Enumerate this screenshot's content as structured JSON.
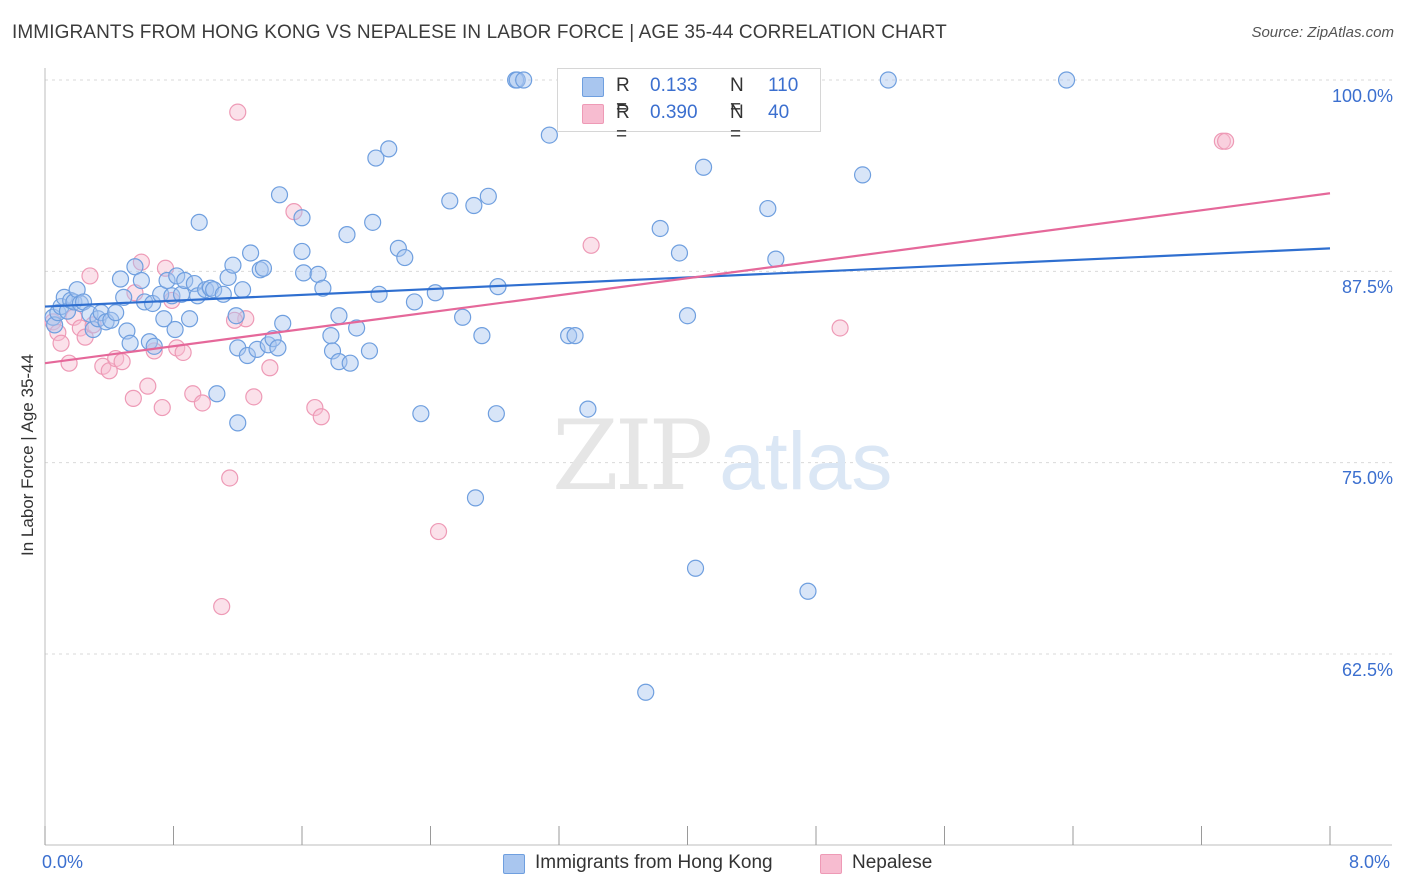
{
  "header": {
    "title": "IMMIGRANTS FROM HONG KONG VS NEPALESE IN LABOR FORCE | AGE 35-44 CORRELATION CHART",
    "source": "Source: ZipAtlas.com"
  },
  "watermark": {
    "zip": "ZIP",
    "atlas": "atlas"
  },
  "legend": {
    "series1": {
      "r_label": "R =",
      "r_value": "0.133",
      "n_label": "N =",
      "n_value": "110"
    },
    "series2": {
      "r_label": "R =",
      "r_value": "0.390",
      "n_label": "N =",
      "n_value": "40"
    }
  },
  "colors": {
    "blue_fill": "#a9c6ef",
    "blue_stroke": "#6f9fdf",
    "blue_line": "#2f6fd0",
    "pink_fill": "#f7bcd0",
    "pink_stroke": "#ee9ab6",
    "pink_line": "#e5689a",
    "grid": "#d9d9d9",
    "tick_text": "#3b6fcf"
  },
  "chart_data": {
    "type": "scatter",
    "title": "IMMIGRANTS FROM HONG KONG VS NEPALESE IN LABOR FORCE | AGE 35-44 CORRELATION CHART",
    "xlabel": "",
    "ylabel": "In Labor Force | Age 35-44",
    "xlim": [
      0,
      8
    ],
    "ylim": [
      50,
      100.5
    ],
    "x_tick_labels": [
      "0.0%",
      "8.0%"
    ],
    "y_ticks": [
      62.5,
      75.0,
      87.5,
      100.0
    ],
    "y_tick_labels": [
      "62.5%",
      "75.0%",
      "87.5%",
      "100.0%"
    ],
    "grid": true,
    "legend_position": "top-center",
    "series": [
      {
        "name": "Immigrants from Hong Kong",
        "color": "#a9c6ef",
        "trend": {
          "x": [
            0,
            8
          ],
          "y": [
            85.2,
            89.0
          ]
        },
        "points": [
          [
            0.05,
            84.5
          ],
          [
            0.06,
            84.0
          ],
          [
            0.08,
            84.8
          ],
          [
            0.1,
            85.2
          ],
          [
            0.12,
            85.8
          ],
          [
            0.14,
            84.9
          ],
          [
            0.16,
            85.6
          ],
          [
            0.18,
            85.5
          ],
          [
            0.2,
            86.3
          ],
          [
            0.22,
            85.4
          ],
          [
            0.24,
            85.5
          ],
          [
            0.28,
            84.7
          ],
          [
            0.3,
            83.7
          ],
          [
            0.33,
            84.4
          ],
          [
            0.35,
            84.8
          ],
          [
            0.38,
            84.2
          ],
          [
            0.41,
            84.3
          ],
          [
            0.44,
            84.8
          ],
          [
            0.47,
            87.0
          ],
          [
            0.49,
            85.8
          ],
          [
            0.51,
            83.6
          ],
          [
            0.53,
            82.8
          ],
          [
            0.56,
            87.8
          ],
          [
            0.6,
            86.9
          ],
          [
            0.62,
            85.5
          ],
          [
            0.65,
            82.9
          ],
          [
            0.67,
            85.4
          ],
          [
            0.68,
            82.6
          ],
          [
            0.72,
            86.0
          ],
          [
            0.74,
            84.4
          ],
          [
            0.76,
            86.9
          ],
          [
            0.79,
            85.9
          ],
          [
            0.81,
            83.7
          ],
          [
            0.82,
            87.2
          ],
          [
            0.85,
            86.0
          ],
          [
            0.87,
            86.9
          ],
          [
            0.9,
            84.4
          ],
          [
            0.93,
            86.7
          ],
          [
            0.95,
            85.9
          ],
          [
            0.96,
            90.7
          ],
          [
            1.0,
            86.3
          ],
          [
            1.03,
            86.4
          ],
          [
            1.05,
            86.3
          ],
          [
            1.07,
            79.5
          ],
          [
            1.11,
            86.0
          ],
          [
            1.14,
            87.1
          ],
          [
            1.17,
            87.9
          ],
          [
            1.19,
            84.6
          ],
          [
            1.2,
            77.6
          ],
          [
            1.2,
            82.5
          ],
          [
            1.23,
            86.3
          ],
          [
            1.26,
            82.0
          ],
          [
            1.28,
            88.7
          ],
          [
            1.32,
            82.4
          ],
          [
            1.34,
            87.6
          ],
          [
            1.36,
            87.7
          ],
          [
            1.39,
            82.7
          ],
          [
            1.42,
            83.1
          ],
          [
            1.45,
            82.5
          ],
          [
            1.46,
            92.5
          ],
          [
            1.48,
            84.1
          ],
          [
            1.6,
            91.0
          ],
          [
            1.6,
            88.8
          ],
          [
            1.61,
            87.4
          ],
          [
            1.7,
            87.3
          ],
          [
            1.73,
            86.4
          ],
          [
            1.78,
            83.3
          ],
          [
            1.79,
            82.3
          ],
          [
            1.83,
            84.6
          ],
          [
            1.83,
            81.6
          ],
          [
            1.88,
            89.9
          ],
          [
            1.9,
            81.5
          ],
          [
            1.94,
            83.8
          ],
          [
            2.02,
            82.3
          ],
          [
            2.04,
            90.7
          ],
          [
            2.06,
            94.9
          ],
          [
            2.08,
            86.0
          ],
          [
            2.14,
            95.5
          ],
          [
            2.2,
            89.0
          ],
          [
            2.24,
            88.4
          ],
          [
            2.3,
            85.5
          ],
          [
            2.34,
            78.2
          ],
          [
            2.43,
            86.1
          ],
          [
            2.52,
            92.1
          ],
          [
            2.6,
            84.5
          ],
          [
            2.68,
            72.7
          ],
          [
            2.72,
            83.3
          ],
          [
            2.76,
            92.4
          ],
          [
            2.81,
            78.2
          ],
          [
            2.82,
            86.5
          ],
          [
            2.93,
            100.0
          ],
          [
            2.94,
            100.0
          ],
          [
            3.14,
            96.4
          ],
          [
            3.26,
            83.3
          ],
          [
            3.3,
            83.3
          ],
          [
            3.38,
            78.5
          ],
          [
            3.83,
            90.3
          ],
          [
            3.95,
            88.7
          ],
          [
            4.0,
            84.6
          ],
          [
            4.05,
            68.1
          ],
          [
            4.1,
            94.3
          ],
          [
            4.5,
            91.6
          ],
          [
            4.55,
            88.3
          ],
          [
            4.75,
            66.6
          ],
          [
            5.09,
            93.8
          ],
          [
            5.25,
            100.0
          ],
          [
            6.36,
            100.0
          ],
          [
            3.74,
            60.0
          ],
          [
            2.98,
            100.0
          ],
          [
            2.67,
            91.8
          ]
        ]
      },
      {
        "name": "Nepalese",
        "color": "#f7bcd0",
        "trend": {
          "x": [
            0,
            8
          ],
          "y": [
            81.5,
            92.6
          ]
        },
        "points": [
          [
            0.05,
            84.2
          ],
          [
            0.08,
            83.5
          ],
          [
            0.1,
            82.8
          ],
          [
            0.15,
            81.5
          ],
          [
            0.18,
            84.5
          ],
          [
            0.22,
            83.8
          ],
          [
            0.25,
            83.2
          ],
          [
            0.28,
            87.2
          ],
          [
            0.3,
            84.0
          ],
          [
            0.36,
            81.3
          ],
          [
            0.4,
            81.0
          ],
          [
            0.44,
            81.8
          ],
          [
            0.48,
            81.6
          ],
          [
            0.55,
            79.2
          ],
          [
            0.56,
            86.1
          ],
          [
            0.6,
            88.1
          ],
          [
            0.64,
            80.0
          ],
          [
            0.68,
            82.3
          ],
          [
            0.73,
            78.6
          ],
          [
            0.75,
            87.7
          ],
          [
            0.79,
            85.6
          ],
          [
            0.82,
            82.5
          ],
          [
            0.86,
            82.2
          ],
          [
            0.92,
            79.5
          ],
          [
            0.98,
            78.9
          ],
          [
            1.1,
            65.6
          ],
          [
            1.15,
            74.0
          ],
          [
            1.2,
            97.9
          ],
          [
            1.25,
            84.4
          ],
          [
            1.3,
            79.3
          ],
          [
            1.4,
            81.2
          ],
          [
            1.55,
            91.4
          ],
          [
            1.68,
            78.6
          ],
          [
            1.72,
            78.0
          ],
          [
            2.45,
            70.5
          ],
          [
            3.4,
            89.2
          ],
          [
            4.95,
            83.8
          ],
          [
            7.33,
            96.0
          ],
          [
            7.35,
            96.0
          ],
          [
            1.18,
            84.3
          ]
        ]
      }
    ]
  },
  "bottom_legend": {
    "series1_label": "Immigrants from Hong Kong",
    "series2_label": "Nepalese"
  }
}
